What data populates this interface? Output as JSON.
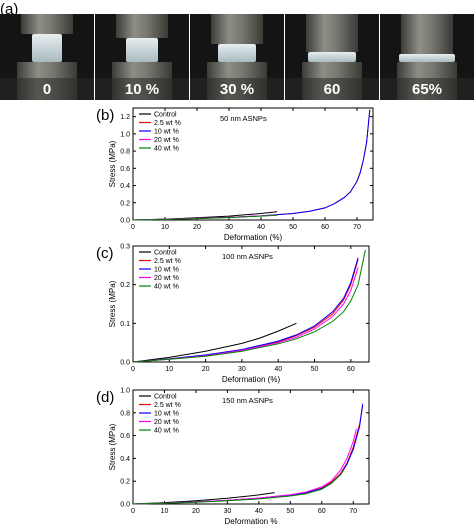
{
  "panel_a": {
    "label": "(a)",
    "frames": [
      "0",
      "10 %",
      "30 %",
      "60",
      "65%"
    ]
  },
  "chart_data": [
    {
      "type": "line",
      "panel_label": "(b)",
      "annotation": "50 nm ASNPs",
      "xlabel": "Deformation (%)",
      "ylabel": "Stress (MPa)",
      "xlim": [
        0,
        75
      ],
      "ylim": [
        0,
        1.3
      ],
      "xticks": [
        0,
        10,
        20,
        30,
        40,
        50,
        60,
        70
      ],
      "yticks": [
        0.0,
        0.2,
        0.4,
        0.6,
        0.8,
        1.0,
        1.2
      ],
      "ytick_labels": [
        "0.0",
        "0.2",
        "0.4",
        "0.6",
        "0.8",
        "1.0",
        "1.2"
      ],
      "legend_position": "top-left",
      "series": [
        {
          "name": "Control",
          "color": "#000000",
          "x": [
            0,
            10,
            20,
            30,
            35,
            40,
            45
          ],
          "y": [
            0,
            0.01,
            0.025,
            0.045,
            0.06,
            0.075,
            0.095
          ]
        },
        {
          "name": "2.5 wt %",
          "color": "#ff0000",
          "x": [
            0,
            10,
            20,
            30,
            40,
            50,
            55,
            60,
            63,
            66,
            68,
            70,
            71,
            72,
            73,
            74
          ],
          "y": [
            0,
            0.008,
            0.018,
            0.03,
            0.048,
            0.075,
            0.1,
            0.14,
            0.19,
            0.26,
            0.33,
            0.45,
            0.55,
            0.7,
            0.9,
            1.28
          ]
        },
        {
          "name": "10 wt %",
          "color": "#0000ff",
          "x": [
            0,
            10,
            20,
            30,
            40,
            50,
            55,
            60,
            63,
            66,
            68,
            70,
            71,
            72,
            73,
            74
          ],
          "y": [
            0,
            0.008,
            0.018,
            0.03,
            0.048,
            0.075,
            0.1,
            0.14,
            0.19,
            0.26,
            0.33,
            0.45,
            0.55,
            0.7,
            0.9,
            1.28
          ]
        },
        {
          "name": "20 wt %",
          "color": "#ff00ff",
          "x": [
            0,
            10,
            20,
            30,
            40,
            45
          ],
          "y": [
            0,
            0.008,
            0.018,
            0.03,
            0.048,
            0.058
          ]
        },
        {
          "name": "40 wt %",
          "color": "#008000",
          "x": [
            0,
            10,
            20,
            30,
            40,
            45
          ],
          "y": [
            0,
            0.007,
            0.016,
            0.028,
            0.045,
            0.055
          ]
        }
      ]
    },
    {
      "type": "line",
      "panel_label": "(c)",
      "annotation": "100 nm ASNPs",
      "xlabel": "Deformation (%)",
      "ylabel": "Stress (MPa)",
      "xlim": [
        0,
        65
      ],
      "ylim": [
        0,
        0.3
      ],
      "xticks": [
        0,
        10,
        20,
        30,
        40,
        50,
        60
      ],
      "yticks": [
        0.0,
        0.1,
        0.2,
        0.3
      ],
      "ytick_labels": [
        "0.0",
        "0.1",
        "0.2",
        "0.3"
      ],
      "legend_position": "top-left",
      "series": [
        {
          "name": "Control",
          "color": "#000000",
          "x": [
            0,
            10,
            20,
            30,
            35,
            40,
            45
          ],
          "y": [
            0,
            0.012,
            0.028,
            0.048,
            0.062,
            0.08,
            0.1
          ]
        },
        {
          "name": "2.5 wt %",
          "color": "#ff0000",
          "x": [
            0,
            10,
            20,
            30,
            40,
            45,
            50,
            55,
            58,
            60,
            62
          ],
          "y": [
            0,
            0.008,
            0.018,
            0.032,
            0.052,
            0.068,
            0.09,
            0.125,
            0.16,
            0.2,
            0.265
          ]
        },
        {
          "name": "10 wt %",
          "color": "#0000ff",
          "x": [
            0,
            10,
            20,
            30,
            40,
            45,
            50,
            55,
            58,
            60,
            62
          ],
          "y": [
            0,
            0.008,
            0.018,
            0.032,
            0.054,
            0.07,
            0.093,
            0.13,
            0.165,
            0.205,
            0.27
          ]
        },
        {
          "name": "20 wt %",
          "color": "#ff00ff",
          "x": [
            0,
            10,
            20,
            30,
            40,
            45,
            50,
            55,
            58,
            60,
            62
          ],
          "y": [
            0,
            0.007,
            0.016,
            0.03,
            0.05,
            0.064,
            0.085,
            0.118,
            0.15,
            0.185,
            0.245
          ]
        },
        {
          "name": "40 wt %",
          "color": "#008000",
          "x": [
            0,
            10,
            20,
            30,
            40,
            45,
            50,
            55,
            58,
            60,
            62,
            64
          ],
          "y": [
            0,
            0.007,
            0.015,
            0.028,
            0.047,
            0.06,
            0.078,
            0.105,
            0.13,
            0.158,
            0.2,
            0.29
          ]
        }
      ]
    },
    {
      "type": "line",
      "panel_label": "(d)",
      "annotation": "150 nm ASNPs",
      "xlabel": "Deformation %",
      "ylabel": "Stress (MPa)",
      "xlim": [
        0,
        75
      ],
      "ylim": [
        0,
        1.0
      ],
      "xticks": [
        0,
        10,
        20,
        30,
        40,
        50,
        60,
        70
      ],
      "yticks": [
        0.0,
        0.2,
        0.4,
        0.6,
        0.8,
        1.0
      ],
      "ytick_labels": [
        "0.0",
        "0.2",
        "0.4",
        "0.6",
        "0.8",
        "1.0"
      ],
      "legend_position": "top-left",
      "series": [
        {
          "name": "Control",
          "color": "#000000",
          "x": [
            0,
            10,
            20,
            30,
            40,
            45
          ],
          "y": [
            0,
            0.012,
            0.028,
            0.05,
            0.08,
            0.1
          ]
        },
        {
          "name": "2.5 wt %",
          "color": "#ff0000",
          "x": [
            0,
            10,
            20,
            30,
            40,
            50,
            55,
            60,
            63,
            66,
            68,
            70,
            72,
            73
          ],
          "y": [
            0,
            0.008,
            0.018,
            0.032,
            0.052,
            0.08,
            0.1,
            0.14,
            0.19,
            0.27,
            0.36,
            0.5,
            0.7,
            0.86
          ]
        },
        {
          "name": "10 wt %",
          "color": "#0000ff",
          "x": [
            0,
            10,
            20,
            30,
            40,
            50,
            55,
            60,
            63,
            66,
            68,
            70,
            72,
            73
          ],
          "y": [
            0,
            0.008,
            0.018,
            0.032,
            0.052,
            0.078,
            0.098,
            0.135,
            0.18,
            0.26,
            0.35,
            0.48,
            0.68,
            0.88
          ]
        },
        {
          "name": "20 wt %",
          "color": "#ff00ff",
          "x": [
            0,
            10,
            20,
            30,
            40,
            50,
            55,
            60,
            63,
            66,
            68,
            70,
            71
          ],
          "y": [
            0,
            0.008,
            0.018,
            0.032,
            0.052,
            0.082,
            0.105,
            0.15,
            0.2,
            0.3,
            0.4,
            0.55,
            0.66
          ]
        },
        {
          "name": "40 wt %",
          "color": "#008000",
          "x": [
            0,
            10,
            20,
            30,
            40,
            50,
            55,
            60,
            63,
            66,
            67
          ],
          "y": [
            0,
            0.007,
            0.016,
            0.028,
            0.045,
            0.07,
            0.09,
            0.13,
            0.18,
            0.26,
            0.3
          ]
        }
      ]
    }
  ],
  "colors": {
    "background": "#ffffff",
    "photo_bg": "#1a1a1a",
    "metal_dark": "#4a4a46",
    "metal_light": "#8a8a84",
    "specimen": "#c8d4d6"
  }
}
